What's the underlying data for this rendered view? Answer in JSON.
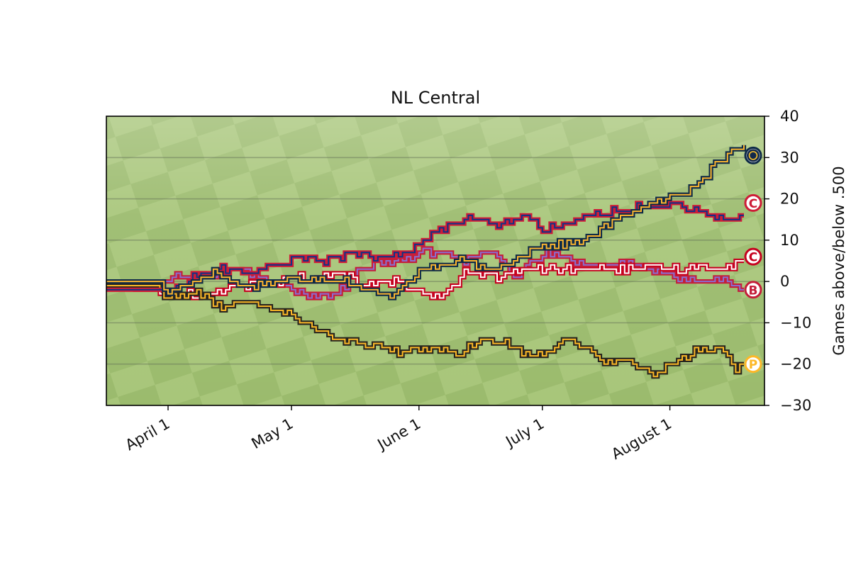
{
  "chart_data": {
    "type": "line",
    "title": "NL Central",
    "xlabel": "",
    "ylabel": "Games above/below .500",
    "ylim": [
      -30,
      40
    ],
    "y_ticks": [
      40,
      30,
      20,
      10,
      0,
      -10,
      -20,
      -30
    ],
    "y_tick_labels": [
      "40",
      "30",
      "20",
      "10",
      "0",
      "−10",
      "−20",
      "−30"
    ],
    "y_axis_side": "right",
    "x_ticks": [
      "2018-04-01",
      "2018-05-01",
      "2018-06-01",
      "2018-07-01",
      "2018-08-01"
    ],
    "x_tick_labels": [
      "April  1",
      "May  1",
      "June  1",
      "July  1",
      "August  1"
    ],
    "xlim": [
      "2018-03-17",
      "2018-08-24"
    ],
    "grid": "horizontal",
    "background": "baseball outfield grass",
    "legend": "team logo markers at series end",
    "series": [
      {
        "color": "#0e2a47",
        "color2": "#fcb52f",
        "logo": "brewers-icon",
        "points": [
          [
            "2018-03-17",
            0
          ],
          [
            "2018-03-29",
            0
          ],
          [
            "2018-04-01",
            -3
          ],
          [
            "2018-04-05",
            -1
          ],
          [
            "2018-04-12",
            2
          ],
          [
            "2018-04-20",
            -1
          ],
          [
            "2018-04-28",
            0
          ],
          [
            "2018-05-06",
            1
          ],
          [
            "2018-05-14",
            0
          ],
          [
            "2018-05-24",
            -4
          ],
          [
            "2018-06-02",
            3
          ],
          [
            "2018-06-12",
            5
          ],
          [
            "2018-06-18",
            2
          ],
          [
            "2018-06-25",
            6
          ],
          [
            "2018-07-01",
            9
          ],
          [
            "2018-07-08",
            9
          ],
          [
            "2018-07-13",
            11
          ],
          [
            "2018-07-22",
            17
          ],
          [
            "2018-07-29",
            19
          ],
          [
            "2018-08-05",
            22
          ],
          [
            "2018-08-11",
            27
          ],
          [
            "2018-08-16",
            32
          ],
          [
            "2018-08-19",
            33
          ]
        ]
      },
      {
        "color": "#ce1c37",
        "color2": "#0e3386",
        "logo": "cubs-icon",
        "points": [
          [
            "2018-03-17",
            -2
          ],
          [
            "2018-03-28",
            -2
          ],
          [
            "2018-04-02",
            -2
          ],
          [
            "2018-04-07",
            1
          ],
          [
            "2018-04-14",
            3
          ],
          [
            "2018-04-20",
            2
          ],
          [
            "2018-04-28",
            4
          ],
          [
            "2018-05-03",
            6
          ],
          [
            "2018-05-09",
            5
          ],
          [
            "2018-05-16",
            7
          ],
          [
            "2018-05-22",
            5
          ],
          [
            "2018-05-30",
            8
          ],
          [
            "2018-06-07",
            13
          ],
          [
            "2018-06-12",
            15
          ],
          [
            "2018-06-16",
            15
          ],
          [
            "2018-06-20",
            13
          ],
          [
            "2018-06-26",
            16
          ],
          [
            "2018-07-01",
            13
          ],
          [
            "2018-07-08",
            14
          ],
          [
            "2018-07-14",
            17
          ],
          [
            "2018-07-22",
            17
          ],
          [
            "2018-07-26",
            19
          ],
          [
            "2018-08-02",
            18
          ],
          [
            "2018-08-08",
            17
          ],
          [
            "2018-08-13",
            15
          ],
          [
            "2018-08-19",
            16
          ]
        ]
      },
      {
        "color": "#c6011f",
        "color2": "#ffffff",
        "logo": "reds-icon",
        "points": [
          [
            "2018-03-17",
            -1
          ],
          [
            "2018-03-29",
            -2
          ],
          [
            "2018-04-03",
            -3
          ],
          [
            "2018-04-10",
            -3
          ],
          [
            "2018-04-20",
            -1
          ],
          [
            "2018-04-28",
            0
          ],
          [
            "2018-05-01",
            2
          ],
          [
            "2018-05-06",
            0
          ],
          [
            "2018-05-12",
            2
          ],
          [
            "2018-05-20",
            -1
          ],
          [
            "2018-05-26",
            0
          ],
          [
            "2018-06-02",
            -3
          ],
          [
            "2018-06-07",
            -3
          ],
          [
            "2018-06-12",
            2
          ],
          [
            "2018-06-20",
            1
          ],
          [
            "2018-06-28",
            3
          ],
          [
            "2018-07-05",
            3
          ],
          [
            "2018-07-13",
            3
          ],
          [
            "2018-07-20",
            3
          ],
          [
            "2018-07-28",
            3
          ],
          [
            "2018-08-04",
            3
          ],
          [
            "2018-08-09",
            4
          ],
          [
            "2018-08-14",
            3
          ],
          [
            "2018-08-19",
            5
          ]
        ]
      },
      {
        "color": "#c41e3a",
        "color2": "#8a6fcf",
        "logo": "cardinals-icon",
        "points": [
          [
            "2018-03-17",
            -1
          ],
          [
            "2018-03-29",
            -2
          ],
          [
            "2018-04-03",
            1
          ],
          [
            "2018-04-10",
            1
          ],
          [
            "2018-04-18",
            3
          ],
          [
            "2018-04-28",
            -1
          ],
          [
            "2018-05-04",
            -3
          ],
          [
            "2018-05-11",
            -4
          ],
          [
            "2018-05-17",
            2
          ],
          [
            "2018-05-22",
            5
          ],
          [
            "2018-05-28",
            5
          ],
          [
            "2018-06-01",
            7
          ],
          [
            "2018-06-08",
            7
          ],
          [
            "2018-06-12",
            5
          ],
          [
            "2018-06-19",
            7
          ],
          [
            "2018-06-24",
            1
          ],
          [
            "2018-06-28",
            4
          ],
          [
            "2018-07-02",
            7
          ],
          [
            "2018-07-08",
            5
          ],
          [
            "2018-07-15",
            4
          ],
          [
            "2018-07-24",
            4
          ],
          [
            "2018-08-01",
            1
          ],
          [
            "2018-08-08",
            0
          ],
          [
            "2018-08-13",
            1
          ],
          [
            "2018-08-17",
            -2
          ],
          [
            "2018-08-19",
            -2
          ]
        ]
      },
      {
        "color": "#27251f",
        "color2": "#fdb827",
        "logo": "pirates-icon",
        "points": [
          [
            "2018-03-17",
            -1
          ],
          [
            "2018-03-29",
            -1
          ],
          [
            "2018-04-01",
            -4
          ],
          [
            "2018-04-08",
            -3
          ],
          [
            "2018-04-14",
            -6
          ],
          [
            "2018-04-21",
            -5
          ],
          [
            "2018-04-28",
            -7
          ],
          [
            "2018-05-05",
            -10
          ],
          [
            "2018-05-12",
            -14
          ],
          [
            "2018-05-19",
            -15
          ],
          [
            "2018-05-27",
            -17
          ],
          [
            "2018-06-04",
            -16
          ],
          [
            "2018-06-10",
            -18
          ],
          [
            "2018-06-16",
            -14
          ],
          [
            "2018-06-22",
            -15
          ],
          [
            "2018-06-28",
            -18
          ],
          [
            "2018-07-02",
            -17
          ],
          [
            "2018-07-06",
            -13
          ],
          [
            "2018-07-11",
            -16
          ],
          [
            "2018-07-16",
            -19
          ],
          [
            "2018-07-23",
            -20
          ],
          [
            "2018-07-28",
            -22
          ],
          [
            "2018-08-03",
            -19
          ],
          [
            "2018-08-09",
            -16
          ],
          [
            "2018-08-14",
            -17
          ],
          [
            "2018-08-17",
            -21
          ],
          [
            "2018-08-19",
            -20
          ]
        ]
      }
    ]
  }
}
